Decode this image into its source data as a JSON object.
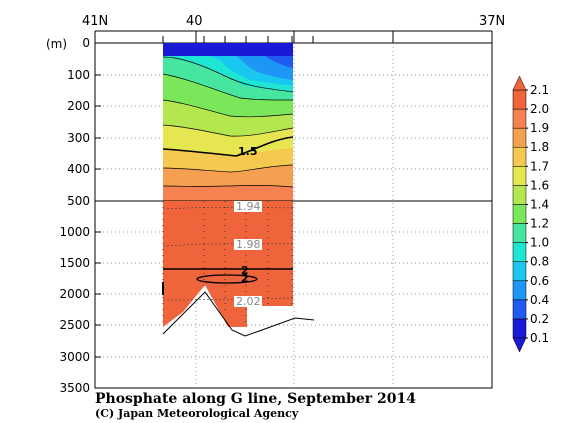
{
  "chart_data": {
    "type": "heatmap",
    "title": "Phosphate along G line, September 2014",
    "credit": "(C) Japan Meteorological Agency",
    "y_unit": "(m)",
    "top_axis_ticks": [
      "41N",
      "40",
      "37N"
    ],
    "depth_ticks_upper": [
      0,
      100,
      200,
      300,
      400,
      500
    ],
    "depth_ticks_lower": [
      1000,
      1500,
      2000,
      2500,
      3000,
      3500
    ],
    "ylim_upper": [
      0,
      500
    ],
    "ylim_lower": [
      500,
      3500
    ],
    "contour_labels": [
      "1.5",
      "1.94",
      "1.98",
      "2",
      "2",
      "2.02"
    ],
    "colorbar": {
      "levels": [
        0.1,
        0.2,
        0.4,
        0.6,
        0.8,
        1.0,
        1.2,
        1.4,
        1.6,
        1.7,
        1.8,
        1.9,
        2.0,
        2.1
      ],
      "labels": [
        "0.1",
        "0.2",
        "0.4",
        "0.6",
        "0.8",
        "1.0",
        "1.2",
        "1.4",
        "1.6",
        "1.7",
        "1.8",
        "1.9",
        "2.0",
        "2.1"
      ],
      "colors": [
        "#1a1ad6",
        "#1f5bf0",
        "#1e96f5",
        "#18c8f0",
        "#1ee6d2",
        "#46e6a0",
        "#7ae65a",
        "#b4e650",
        "#e6e650",
        "#f5c850",
        "#f5a050",
        "#f58250",
        "#f0643c"
      ]
    }
  }
}
